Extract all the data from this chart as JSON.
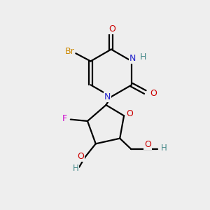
{
  "background_color": "#eeeeee",
  "atom_colors": {
    "C": "#000000",
    "N": "#2222cc",
    "O": "#cc0000",
    "Br": "#cc8800",
    "F": "#cc00cc",
    "H": "#448888"
  },
  "figsize": [
    3.0,
    3.0
  ],
  "dpi": 100
}
